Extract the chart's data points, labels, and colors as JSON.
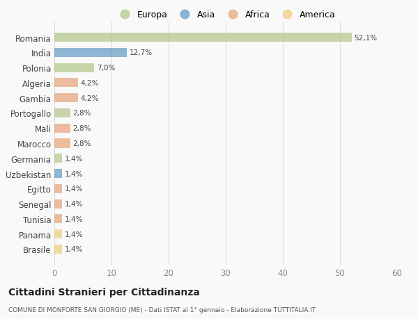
{
  "countries": [
    "Romania",
    "India",
    "Polonia",
    "Algeria",
    "Gambia",
    "Portogallo",
    "Mali",
    "Marocco",
    "Germania",
    "Uzbekistan",
    "Egitto",
    "Senegal",
    "Tunisia",
    "Panama",
    "Brasile"
  ],
  "values": [
    52.1,
    12.7,
    7.0,
    4.2,
    4.2,
    2.8,
    2.8,
    2.8,
    1.4,
    1.4,
    1.4,
    1.4,
    1.4,
    1.4,
    1.4
  ],
  "labels": [
    "52,1%",
    "12,7%",
    "7,0%",
    "4,2%",
    "4,2%",
    "2,8%",
    "2,8%",
    "2,8%",
    "1,4%",
    "1,4%",
    "1,4%",
    "1,4%",
    "1,4%",
    "1,4%",
    "1,4%"
  ],
  "continents": [
    "Europa",
    "Asia",
    "Europa",
    "Africa",
    "Africa",
    "Europa",
    "Africa",
    "Africa",
    "Europa",
    "Asia",
    "Africa",
    "Africa",
    "Africa",
    "America",
    "America"
  ],
  "colors": {
    "Europa": "#b5c98e",
    "Asia": "#6a9ec5",
    "Africa": "#e8a97e",
    "America": "#f0d080"
  },
  "legend_order": [
    "Europa",
    "Asia",
    "Africa",
    "America"
  ],
  "legend_colors": [
    "#b5c98e",
    "#6a9ec5",
    "#e8a97e",
    "#f0d080"
  ],
  "title": "Cittadini Stranieri per Cittadinanza",
  "subtitle": "COMUNE DI MONFORTE SAN GIORGIO (ME) - Dati ISTAT al 1° gennaio - Elaborazione TUTTITALIA.IT",
  "xlim": [
    0,
    60
  ],
  "xticks": [
    0,
    10,
    20,
    30,
    40,
    50,
    60
  ],
  "bg_color": "#f9f9f9",
  "grid_color": "#dddddd",
  "bar_alpha": 0.75
}
